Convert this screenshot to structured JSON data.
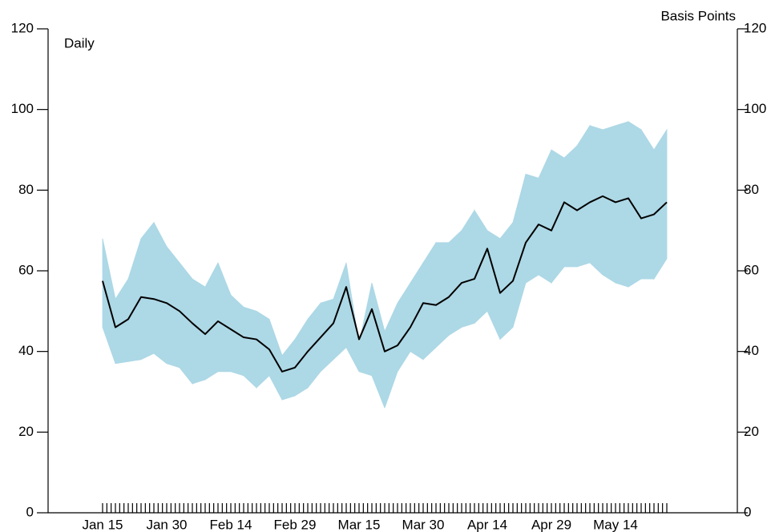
{
  "chart_data": {
    "type": "line",
    "label_left": "Daily",
    "label_right": "Basis Points",
    "categories": [
      "Jan 15",
      null,
      null,
      null,
      null,
      "Jan 30",
      null,
      null,
      null,
      null,
      "Feb 14",
      null,
      null,
      null,
      null,
      "Feb 29",
      null,
      null,
      null,
      null,
      "Mar 15",
      null,
      null,
      null,
      null,
      "Mar 30",
      null,
      null,
      null,
      null,
      "Apr 14",
      null,
      null,
      null,
      null,
      "Apr 29",
      null,
      null,
      null,
      null,
      "May 14",
      null,
      null,
      null,
      null
    ],
    "values": [
      57.5,
      46,
      48,
      53.5,
      53,
      52,
      50,
      47,
      44.3,
      47.5,
      45.5,
      43.5,
      43,
      40.5,
      35,
      36,
      40,
      43.5,
      47,
      56,
      43,
      50.5,
      40,
      41.5,
      46,
      52,
      51.5,
      53.5,
      57,
      58,
      65.5,
      54.5,
      57.5,
      67,
      71.5,
      70,
      77,
      75,
      77,
      78.5,
      77,
      78,
      73,
      74,
      77
    ],
    "band_upper": [
      68,
      53,
      58,
      68,
      72,
      66,
      62,
      58,
      56,
      62,
      54,
      51,
      50,
      48,
      39,
      43,
      48,
      52,
      53,
      62,
      42,
      57,
      45,
      52,
      57,
      62,
      67,
      67,
      70,
      75,
      70,
      68,
      72,
      84,
      83,
      90,
      88,
      91,
      96,
      95,
      96,
      97,
      95,
      90,
      95
    ],
    "band_lower": [
      46,
      37,
      37.5,
      38,
      39.5,
      37,
      36,
      32,
      33,
      35,
      35,
      34,
      31,
      34,
      28,
      29,
      31,
      35,
      38,
      41,
      35,
      34,
      26,
      35,
      40,
      38,
      41,
      44,
      46,
      47,
      50,
      43,
      46,
      57,
      59,
      57,
      61,
      61,
      62,
      59,
      57,
      56,
      58,
      58,
      63
    ],
    "color": "#000000",
    "band_color": "#add8e6",
    "ylim": [
      0,
      120
    ],
    "yticks": [
      0,
      20,
      40,
      60,
      80,
      100,
      120
    ],
    "y2lim": [
      0,
      120
    ],
    "y2ticks": [
      0,
      20,
      40,
      60,
      80,
      100,
      120
    ]
  }
}
